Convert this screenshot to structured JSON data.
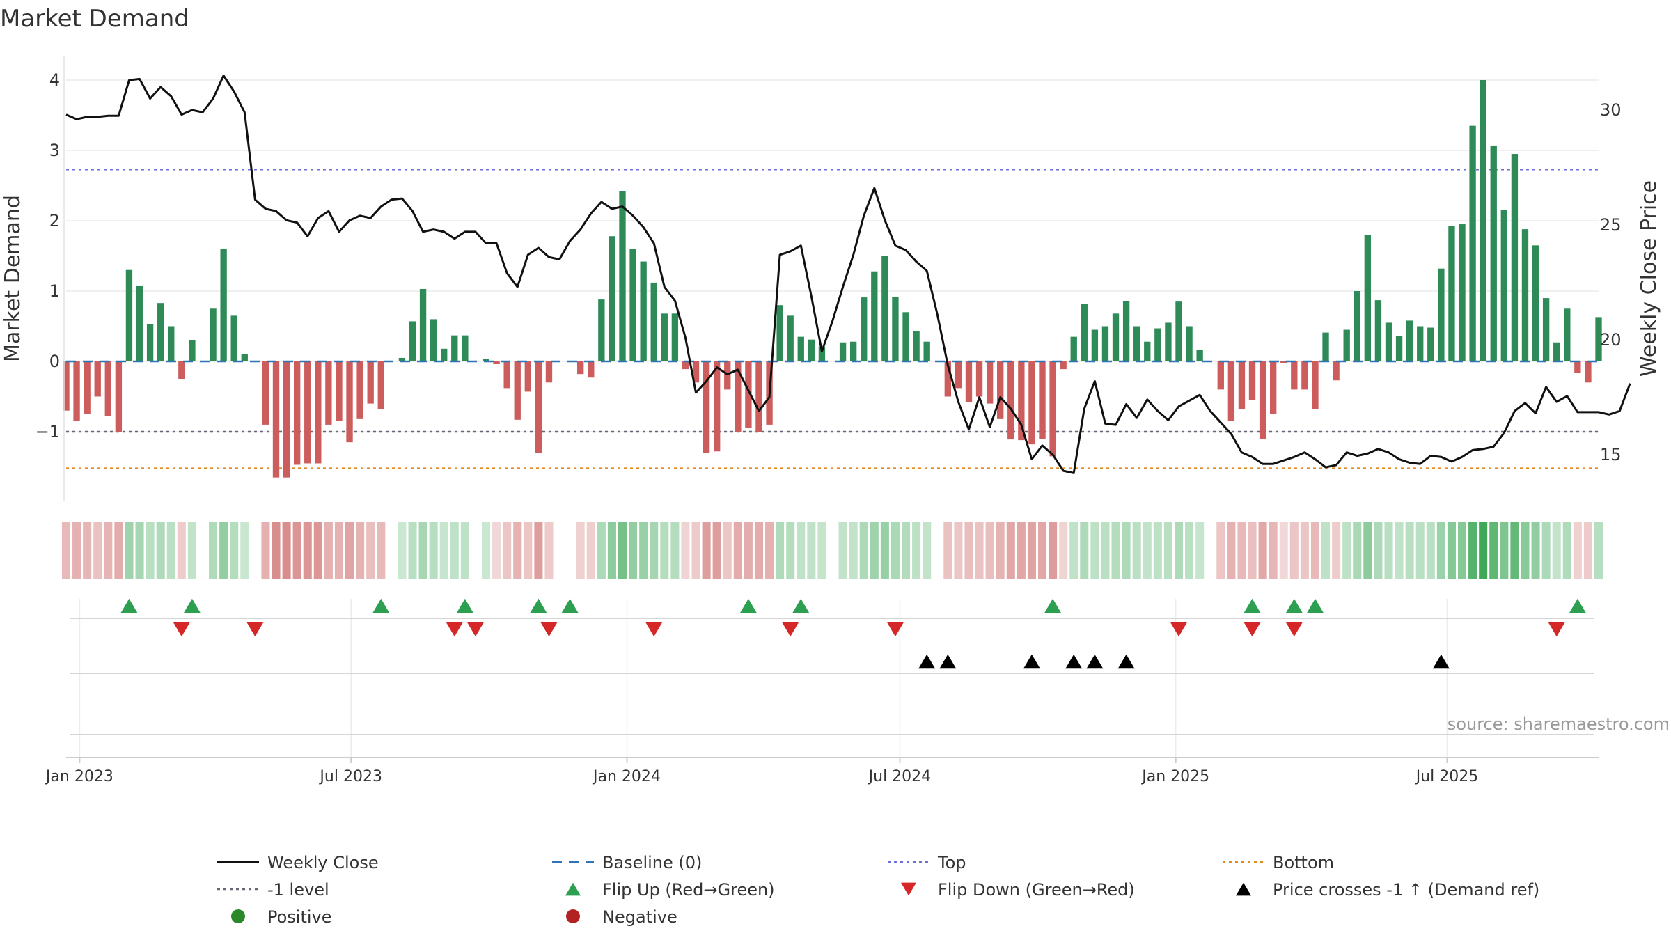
{
  "chart_data": {
    "type": "bar+line",
    "title": "Market Demand",
    "ylabel": "Market Demand",
    "y2label": "Weekly Close Price",
    "ylim": [
      -2.0,
      4.1
    ],
    "y2lim": [
      13.5,
      32.0
    ],
    "yticks": [
      4,
      3,
      2,
      1,
      0,
      -1
    ],
    "ytick_labels": [
      "4",
      "3",
      "2",
      "1",
      "0",
      "−1"
    ],
    "y2ticks": [
      30,
      25,
      20,
      15
    ],
    "y2tick_labels": [
      "30",
      "25",
      "20",
      "15"
    ],
    "x_start": "2022-12-23",
    "x_step_days": 7,
    "xticks": [
      {
        "label": "Jan 2023",
        "date": "2023-01-01"
      },
      {
        "label": "Jul 2023",
        "date": "2023-07-01"
      },
      {
        "label": "Jan 2024",
        "date": "2024-01-01"
      },
      {
        "label": "Jul 2024",
        "date": "2024-07-01"
      },
      {
        "label": "Jan 2025",
        "date": "2025-01-01"
      },
      {
        "label": "Jul 2025",
        "date": "2025-07-01"
      }
    ],
    "series": [
      {
        "name": "Market Demand",
        "type": "bar",
        "values": [
          -0.7,
          -0.85,
          -0.75,
          -0.5,
          -0.78,
          -1.0,
          1.3,
          1.07,
          0.53,
          0.83,
          0.5,
          -0.25,
          0.3,
          0.0,
          0.75,
          1.6,
          0.65,
          0.1,
          -0.01,
          -0.9,
          -1.65,
          -1.65,
          -1.47,
          -1.45,
          -1.45,
          -0.9,
          -0.85,
          -1.15,
          -0.82,
          -0.6,
          -0.68,
          0.0,
          0.05,
          0.57,
          1.03,
          0.6,
          0.18,
          0.37,
          0.37,
          0.0,
          0.03,
          -0.04,
          -0.38,
          -0.83,
          -0.43,
          -1.3,
          -0.3,
          0.0,
          0.0,
          -0.18,
          -0.23,
          0.88,
          1.78,
          2.42,
          1.6,
          1.42,
          1.12,
          0.68,
          0.68,
          -0.11,
          -0.3,
          -1.3,
          -1.28,
          -0.4,
          -1.0,
          -0.95,
          -1.0,
          -0.9,
          0.8,
          0.65,
          0.35,
          0.31,
          0.21,
          -0.01,
          0.27,
          0.28,
          0.91,
          1.28,
          1.5,
          0.92,
          0.7,
          0.43,
          0.28,
          -0.01,
          -0.5,
          -0.38,
          -0.58,
          -0.5,
          -0.6,
          -0.82,
          -1.11,
          -1.12,
          -1.18,
          -1.1,
          -1.35,
          -0.11,
          0.35,
          0.82,
          0.45,
          0.5,
          0.68,
          0.86,
          0.5,
          0.28,
          0.47,
          0.55,
          0.85,
          0.5,
          0.16,
          -0.01,
          -0.4,
          -0.85,
          -0.68,
          -0.55,
          -1.1,
          -0.75,
          -0.02,
          -0.4,
          -0.4,
          -0.68,
          0.41,
          -0.27,
          0.45,
          1.0,
          1.8,
          0.87,
          0.55,
          0.36,
          0.58,
          0.5,
          0.48,
          1.32,
          1.93,
          1.95,
          3.35,
          4.0,
          3.07,
          2.15,
          2.95,
          1.88,
          1.65,
          0.9,
          0.27,
          0.75,
          -0.16,
          -0.3,
          0.63
        ]
      },
      {
        "name": "Weekly Close",
        "type": "line",
        "axis": "right",
        "values": [
          29.8,
          29.6,
          29.7,
          29.7,
          29.75,
          29.75,
          31.3,
          31.35,
          30.5,
          31.0,
          30.6,
          29.8,
          30.0,
          29.9,
          30.5,
          31.5,
          30.8,
          29.9,
          26.1,
          25.7,
          25.6,
          25.2,
          25.1,
          24.5,
          25.3,
          25.6,
          24.7,
          25.2,
          25.4,
          25.3,
          25.8,
          26.1,
          26.15,
          25.6,
          24.7,
          24.8,
          24.7,
          24.4,
          24.7,
          24.7,
          24.2,
          24.2,
          22.9,
          22.3,
          23.7,
          24.0,
          23.6,
          23.5,
          24.3,
          24.8,
          25.5,
          26.0,
          25.7,
          25.8,
          25.4,
          24.9,
          24.2,
          22.3,
          21.7,
          20.1,
          17.7,
          18.2,
          18.8,
          18.5,
          18.7,
          17.8,
          16.9,
          17.5,
          23.7,
          23.85,
          24.1,
          21.9,
          19.5,
          20.8,
          22.3,
          23.7,
          25.4,
          26.6,
          25.2,
          24.1,
          23.9,
          23.4,
          23.0,
          21.1,
          18.9,
          17.3,
          16.1,
          17.5,
          16.2,
          17.5,
          17.0,
          16.3,
          14.8,
          15.4,
          15.0,
          14.3,
          14.2,
          17.0,
          18.2,
          16.35,
          16.3,
          17.2,
          16.6,
          17.4,
          16.9,
          16.5,
          17.1,
          17.35,
          17.6,
          16.9,
          16.4,
          15.9,
          15.1,
          14.9,
          14.6,
          14.6,
          14.75,
          14.9,
          15.1,
          14.8,
          14.45,
          14.55,
          15.1,
          14.95,
          15.05,
          15.25,
          15.1,
          14.8,
          14.65,
          14.6,
          14.95,
          14.9,
          14.7,
          14.9,
          15.2,
          15.25,
          15.35,
          15.95,
          16.9,
          17.25,
          16.8,
          17.95,
          17.3,
          17.55,
          16.85,
          16.85,
          16.85,
          16.75,
          16.9,
          18.1
        ]
      },
      {
        "name": "Baseline (0)",
        "type": "hline",
        "axis": "left",
        "value": 0
      },
      {
        "name": "Top",
        "type": "hline",
        "axis": "left",
        "value": 2.73
      },
      {
        "name": "-1 level",
        "type": "hline",
        "axis": "left",
        "value": -1
      },
      {
        "name": "Bottom",
        "type": "hline",
        "axis": "left",
        "value": -1.52
      }
    ],
    "flip_up_weeks": [
      6,
      12,
      30,
      38,
      45,
      48,
      65,
      70,
      94,
      113,
      117,
      119,
      144
    ],
    "flip_down_weeks": [
      11,
      18,
      37,
      39,
      46,
      56,
      69,
      79,
      106,
      113,
      117,
      142
    ],
    "price_cross_weeks": [
      82,
      84,
      92,
      96,
      98,
      101,
      131
    ],
    "legend": [
      {
        "label": "Weekly Close",
        "marker": "line",
        "color": "#111111"
      },
      {
        "label": "Baseline (0)",
        "marker": "dash",
        "color": "#2f74b5"
      },
      {
        "label": "Top",
        "marker": "dot",
        "color": "#6f6fdc"
      },
      {
        "label": "Bottom",
        "marker": "dot",
        "color": "#e28a1a"
      },
      {
        "label": "-1 level",
        "marker": "dot",
        "color": "#666677"
      },
      {
        "label": "Flip Up (Red→Green)",
        "marker": "tri-up",
        "color": "#2ca050"
      },
      {
        "label": "Flip Down (Green→Red)",
        "marker": "tri-down",
        "color": "#d62728"
      },
      {
        "label": "Price crosses -1 ↑ (Demand ref)",
        "marker": "tri-up",
        "color": "#000000"
      },
      {
        "label": "Positive",
        "marker": "circle",
        "color": "#2a8a2a"
      },
      {
        "label": "Negative",
        "marker": "circle",
        "color": "#b22222"
      }
    ],
    "source": "source: sharemaestro.com"
  },
  "colors": {
    "positive_bar": "#2e8b57",
    "negative_bar": "#cd5c5c",
    "price_line": "#111111",
    "grid": "#e6e6e6"
  }
}
